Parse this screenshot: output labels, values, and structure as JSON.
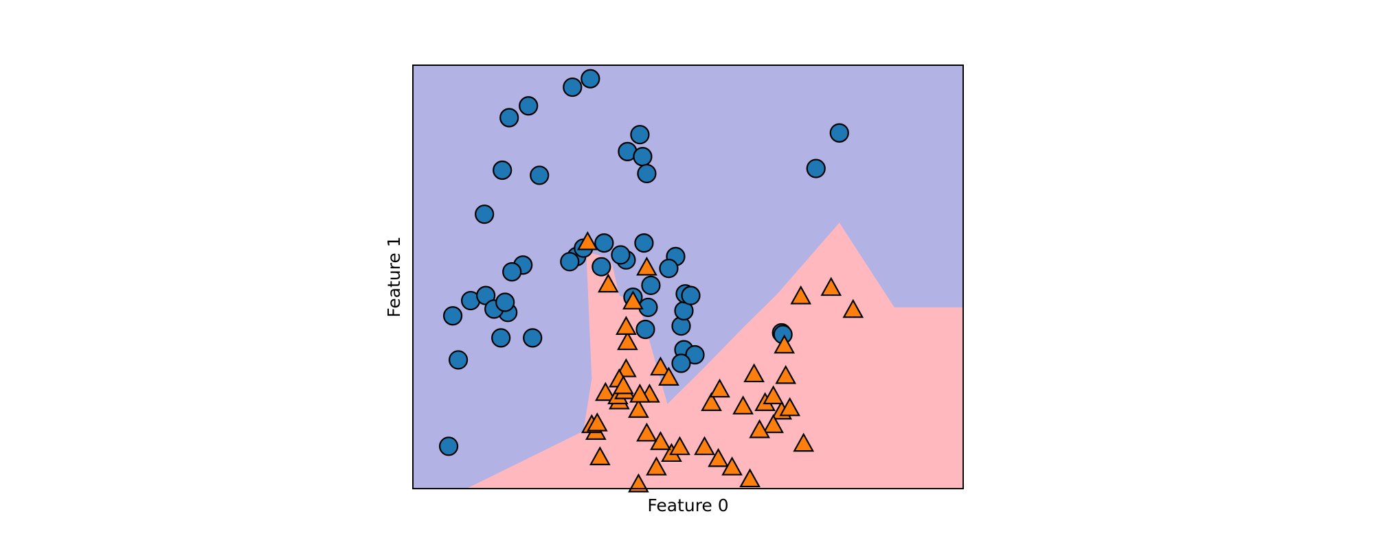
{
  "chart_data": {
    "type": "scatter",
    "title": "",
    "xlabel": "Feature 0",
    "ylabel": "Feature 1",
    "x_ticks_shown": false,
    "y_ticks_shown": false,
    "grid": false,
    "xlim": [
      -1.5,
      2.5
    ],
    "ylim": [
      -1.0,
      1.5
    ],
    "decision_regions": {
      "class_0_color": "#b2b2e4",
      "class_1_color": "#ffb9be",
      "boundary": [
        [
          -1.11,
          -1.0
        ],
        [
          -0.26,
          -0.66
        ],
        [
          -0.2,
          -0.35
        ],
        [
          -0.24,
          0.4
        ],
        [
          -0.12,
          0.37
        ],
        [
          -0.05,
          0.32
        ],
        [
          0.0,
          0.14
        ],
        [
          0.06,
          0.12
        ],
        [
          0.14,
          0.1
        ],
        [
          0.35,
          -0.5
        ],
        [
          0.6,
          -0.3
        ],
        [
          0.9,
          -0.05
        ],
        [
          1.15,
          0.15
        ],
        [
          1.6,
          0.57
        ],
        [
          2.0,
          0.07
        ],
        [
          2.5,
          0.07
        ]
      ]
    },
    "series": [
      {
        "marker": "circle",
        "color": "#1f77b4",
        "points": [
          [
            -0.8,
            1.19
          ],
          [
            -0.66,
            1.26
          ],
          [
            -0.85,
            0.88
          ],
          [
            -0.58,
            0.85
          ],
          [
            -0.98,
            0.62
          ],
          [
            -1.08,
            0.11
          ],
          [
            -1.21,
            0.02
          ],
          [
            -1.24,
            -0.75
          ],
          [
            -1.17,
            -0.24
          ],
          [
            -0.97,
            0.14
          ],
          [
            -0.81,
            0.04
          ],
          [
            -0.86,
            -0.11
          ],
          [
            -0.63,
            -0.11
          ],
          [
            -0.91,
            0.06
          ],
          [
            -0.83,
            0.1
          ],
          [
            -0.31,
            0.37
          ],
          [
            -0.7,
            0.32
          ],
          [
            -0.78,
            0.28
          ],
          [
            0.05,
            0.35
          ],
          [
            0.41,
            0.37
          ],
          [
            0.36,
            0.3
          ],
          [
            0.19,
            -0.06
          ],
          [
            -0.26,
            0.42
          ],
          [
            -0.11,
            0.45
          ],
          [
            -0.13,
            0.31
          ],
          [
            0.23,
            0.2
          ],
          [
            0.21,
            0.07
          ],
          [
            0.1,
            0.13
          ],
          [
            0.47,
            -0.18
          ],
          [
            0.45,
            -0.04
          ],
          [
            0.55,
            -0.21
          ],
          [
            0.45,
            -0.26
          ],
          [
            0.47,
            0.05
          ],
          [
            0.48,
            0.15
          ],
          [
            0.52,
            0.14
          ],
          [
            1.18,
            -0.08
          ],
          [
            1.19,
            -0.09
          ],
          [
            1.6,
            1.1
          ],
          [
            1.43,
            0.89
          ],
          [
            0.18,
            0.45
          ],
          [
            0.01,
            0.38
          ],
          [
            -0.36,
            0.34
          ],
          [
            -0.34,
            1.37
          ],
          [
            -0.21,
            1.42
          ],
          [
            0.15,
            1.09
          ],
          [
            0.06,
            0.99
          ],
          [
            0.17,
            0.96
          ],
          [
            0.2,
            0.86
          ]
        ]
      },
      {
        "marker": "triangle",
        "color": "#ff7f0e",
        "points": [
          [
            -0.23,
            0.45
          ],
          [
            -0.08,
            0.2
          ],
          [
            0.1,
            0.1
          ],
          [
            0.06,
            -0.14
          ],
          [
            0.2,
            0.3
          ],
          [
            0.05,
            -0.3
          ],
          [
            -0.1,
            -0.44
          ],
          [
            -0.14,
            -0.82
          ],
          [
            0.14,
            -0.98
          ],
          [
            0.27,
            -0.88
          ],
          [
            0.38,
            -0.8
          ],
          [
            0.44,
            -0.76
          ],
          [
            0.62,
            -0.76
          ],
          [
            0.72,
            -0.83
          ],
          [
            0.82,
            -0.88
          ],
          [
            0.0,
            -0.49
          ],
          [
            0.3,
            -0.29
          ],
          [
            0.36,
            -0.35
          ],
          [
            0.67,
            -0.5
          ],
          [
            0.73,
            -0.42
          ],
          [
            0.98,
            -0.33
          ],
          [
            1.06,
            -0.5
          ],
          [
            1.18,
            -0.55
          ],
          [
            1.24,
            -0.53
          ],
          [
            1.34,
            -0.74
          ],
          [
            1.12,
            -0.63
          ],
          [
            1.12,
            -0.46
          ],
          [
            1.02,
            -0.66
          ],
          [
            0.95,
            -0.95
          ],
          [
            0.3,
            -0.73
          ],
          [
            0.2,
            -0.68
          ],
          [
            0.14,
            -0.54
          ],
          [
            -0.01,
            -0.46
          ],
          [
            -0.17,
            -0.67
          ],
          [
            -0.2,
            -0.63
          ],
          [
            -0.16,
            -0.62
          ],
          [
            1.32,
            0.13
          ],
          [
            1.54,
            0.18
          ],
          [
            1.7,
            0.05
          ],
          [
            1.2,
            -0.16
          ],
          [
            1.21,
            -0.34
          ],
          [
            0.05,
            -0.05
          ],
          [
            0.0,
            -0.36
          ],
          [
            0.04,
            -0.43
          ],
          [
            0.03,
            -0.4
          ],
          [
            0.9,
            -0.52
          ],
          [
            0.22,
            -0.45
          ],
          [
            0.15,
            -0.45
          ]
        ]
      }
    ]
  }
}
